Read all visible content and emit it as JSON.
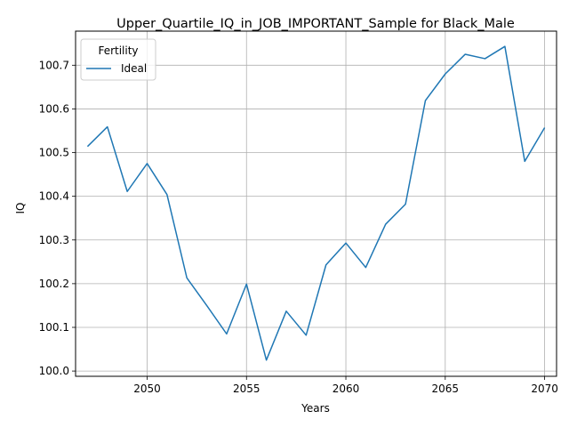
{
  "chart_data": {
    "type": "line",
    "title": "Upper_Quartile_IQ_in_JOB_IMPORTANT_Sample for Black_Male",
    "xlabel": "Years",
    "ylabel": "IQ",
    "xlim": [
      2046.4,
      2070.6
    ],
    "ylim": [
      99.988,
      100.778
    ],
    "xticks": [
      2050,
      2055,
      2060,
      2065,
      2070
    ],
    "yticks": [
      100.0,
      100.1,
      100.2,
      100.3,
      100.4,
      100.5,
      100.6,
      100.7
    ],
    "grid": true,
    "legend": {
      "title": "Fertility",
      "placement": "top-left"
    },
    "series": [
      {
        "name": "Ideal",
        "color": "#1f77b4",
        "x": [
          2047,
          2048,
          2049,
          2050,
          2051,
          2052,
          2053,
          2054,
          2055,
          2056,
          2057,
          2058,
          2059,
          2060,
          2061,
          2062,
          2063,
          2064,
          2065,
          2066,
          2067,
          2068,
          2069,
          2070
        ],
        "y": [
          100.514,
          100.559,
          100.411,
          100.475,
          100.404,
          100.213,
          100.15,
          100.085,
          100.199,
          100.025,
          100.137,
          100.082,
          100.243,
          100.293,
          100.237,
          100.336,
          100.382,
          100.619,
          100.68,
          100.725,
          100.715,
          100.743,
          100.48,
          100.557
        ]
      }
    ]
  }
}
